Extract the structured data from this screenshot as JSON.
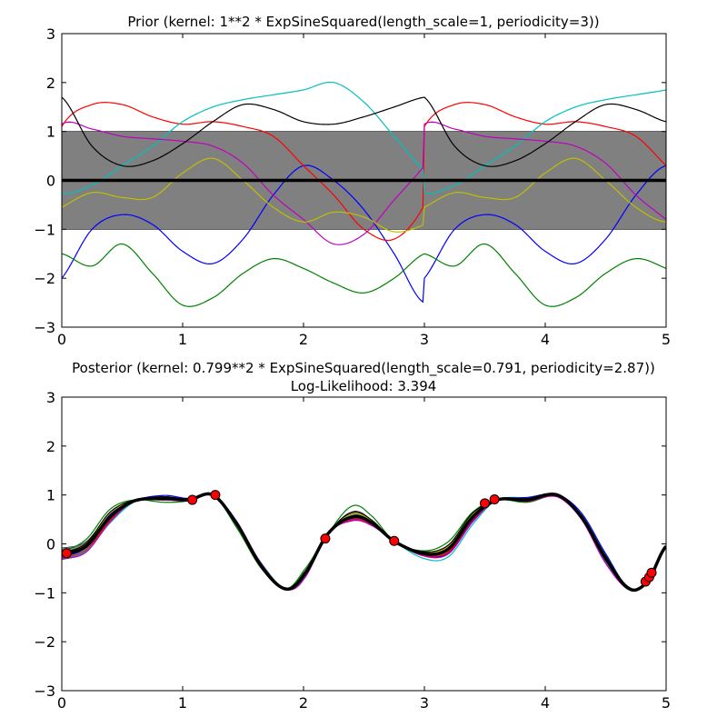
{
  "colors": {
    "background": "#ffffff",
    "band": "#808080",
    "mean": "#000000",
    "observation": "#ff0000",
    "observation_edge": "#000000"
  },
  "chart_data": [
    {
      "type": "line",
      "title": "Prior (kernel:  1**2 * ExpSineSquared(length_scale=1, periodicity=3))",
      "subtitle": "",
      "xlabel": "",
      "ylabel": "",
      "xlim": [
        0,
        5
      ],
      "ylim": [
        -3,
        3
      ],
      "xticks": [
        0,
        1,
        2,
        3,
        4,
        5
      ],
      "yticks": [
        -3,
        -2,
        -1,
        0,
        1,
        2,
        3
      ],
      "grid": false,
      "legend": "none",
      "periodicity": 3,
      "mean": {
        "x": [
          0,
          5
        ],
        "y": [
          0,
          0
        ]
      },
      "band": {
        "lower": -1,
        "upper": 1
      },
      "sample_x": [
        0,
        0.25,
        0.5,
        0.75,
        1.0,
        1.25,
        1.5,
        1.75,
        2.0,
        2.25,
        2.5,
        2.75,
        3.0
      ],
      "series": [
        {
          "color": "#0000ff",
          "values": [
            -2.0,
            -1.0,
            -0.7,
            -0.9,
            -1.45,
            -1.7,
            -1.2,
            -0.3,
            0.3,
            0.0,
            -0.6,
            -1.5,
            -2.5
          ]
        },
        {
          "color": "#008000",
          "values": [
            -1.5,
            -1.75,
            -1.3,
            -1.9,
            -2.55,
            -2.4,
            -1.9,
            -1.6,
            -1.8,
            -2.1,
            -2.3,
            -2.0,
            -1.5
          ]
        },
        {
          "color": "#ff0000",
          "values": [
            1.1,
            1.55,
            1.55,
            1.3,
            1.15,
            1.2,
            1.1,
            0.9,
            0.3,
            -0.3,
            -1.0,
            -1.2,
            -0.5
          ]
        },
        {
          "color": "#00bfbf",
          "values": [
            -0.25,
            -0.1,
            0.3,
            0.7,
            1.2,
            1.5,
            1.65,
            1.75,
            1.85,
            2.0,
            1.6,
            0.9,
            0.2
          ]
        },
        {
          "color": "#bf00bf",
          "values": [
            1.15,
            1.05,
            0.9,
            0.85,
            0.8,
            0.7,
            0.35,
            -0.3,
            -0.8,
            -1.3,
            -1.1,
            -0.4,
            0.3
          ]
        },
        {
          "color": "#bfbf00",
          "values": [
            -0.55,
            -0.25,
            -0.35,
            -0.35,
            0.15,
            0.45,
            0.0,
            -0.55,
            -0.85,
            -0.65,
            -0.75,
            -1.05,
            -0.9
          ]
        },
        {
          "color": "#000000",
          "values": [
            1.7,
            0.7,
            0.3,
            0.4,
            0.75,
            1.2,
            1.55,
            1.45,
            1.2,
            1.15,
            1.3,
            1.5,
            1.7
          ]
        }
      ]
    },
    {
      "type": "line",
      "title": "Posterior (kernel: 0.799**2 * ExpSineSquared(length_scale=0.791, periodicity=2.87))",
      "subtitle": "Log-Likelihood: 3.394",
      "xlabel": "",
      "ylabel": "",
      "xlim": [
        0,
        5
      ],
      "ylim": [
        -3,
        3
      ],
      "xticks": [
        0,
        1,
        2,
        3,
        4,
        5
      ],
      "yticks": [
        -3,
        -2,
        -1,
        0,
        1,
        2,
        3
      ],
      "grid": false,
      "legend": "none",
      "periodicity": 2.87,
      "mean": {
        "x": [
          0,
          0.2,
          0.4,
          0.6,
          0.85,
          1.05,
          1.25,
          1.45,
          1.65,
          1.85,
          2.0,
          2.2,
          2.4,
          2.55,
          2.75,
          3.0,
          3.2,
          3.4,
          3.6,
          3.85,
          4.1,
          4.3,
          4.5,
          4.7,
          4.85,
          5.0
        ],
        "y": [
          -0.2,
          -0.05,
          0.55,
          0.88,
          0.93,
          0.9,
          1.0,
          0.4,
          -0.45,
          -0.92,
          -0.65,
          0.2,
          0.55,
          0.45,
          0.05,
          -0.2,
          -0.1,
          0.55,
          0.9,
          0.9,
          1.0,
          0.55,
          -0.3,
          -0.92,
          -0.75,
          -0.05
        ]
      },
      "band_halfwidth": [
        0.12,
        0.1,
        0.08,
        0.02,
        0.04,
        0.02,
        0.01,
        0.04,
        0.05,
        0.01,
        0.06,
        0.01,
        0.08,
        0.05,
        0.01,
        0.04,
        0.08,
        0.08,
        0.01,
        0.04,
        0.02,
        0.03,
        0.05,
        0.02,
        0.01,
        0.02
      ],
      "sample_offsets": [
        {
          "color": "#0000ff",
          "values": [
            -0.05,
            -0.02,
            0.05,
            0.01,
            0.06,
            0.03,
            0.0,
            0.05,
            0.0,
            0.0,
            0.03,
            0.0,
            -0.03,
            -0.02,
            0.0,
            -0.02,
            -0.1,
            -0.08,
            0.0,
            0.05,
            0.01,
            0.08,
            0.1,
            0.0,
            0.0,
            0.0
          ]
        },
        {
          "color": "#008000",
          "values": [
            0.06,
            0.14,
            0.16,
            0.02,
            -0.08,
            -0.02,
            0.0,
            -0.08,
            -0.05,
            0.0,
            0.1,
            0.0,
            0.22,
            0.15,
            0.0,
            0.06,
            0.15,
            0.1,
            0.0,
            -0.05,
            -0.02,
            0.04,
            0.06,
            0.02,
            0.0,
            0.0
          ]
        },
        {
          "color": "#ff0000",
          "values": [
            -0.08,
            -0.08,
            -0.06,
            -0.01,
            0.0,
            -0.01,
            0.0,
            0.02,
            0.03,
            0.0,
            -0.04,
            0.0,
            -0.06,
            -0.03,
            0.0,
            -0.03,
            -0.06,
            -0.05,
            0.0,
            -0.03,
            -0.02,
            -0.03,
            -0.05,
            -0.01,
            0.0,
            0.0
          ]
        },
        {
          "color": "#00bfbf",
          "values": [
            -0.1,
            -0.1,
            -0.12,
            -0.02,
            0.03,
            0.0,
            0.0,
            -0.03,
            0.06,
            0.0,
            -0.06,
            0.0,
            0.02,
            0.02,
            0.0,
            -0.1,
            -0.16,
            -0.15,
            0.0,
            0.03,
            0.01,
            -0.04,
            -0.08,
            -0.03,
            0.0,
            0.0
          ]
        },
        {
          "color": "#bf00bf",
          "values": [
            -0.1,
            -0.12,
            -0.1,
            0.0,
            -0.03,
            -0.02,
            0.0,
            0.04,
            0.05,
            0.0,
            -0.08,
            0.0,
            -0.08,
            -0.06,
            0.0,
            -0.05,
            -0.1,
            -0.1,
            0.0,
            -0.03,
            -0.04,
            -0.05,
            -0.1,
            -0.02,
            0.0,
            0.0
          ]
        },
        {
          "color": "#bfbf00",
          "values": [
            0.02,
            0.05,
            0.08,
            0.01,
            0.02,
            0.01,
            0.0,
            -0.02,
            -0.02,
            0.0,
            0.04,
            0.0,
            0.05,
            0.04,
            0.0,
            0.03,
            0.05,
            0.05,
            0.0,
            0.01,
            0.01,
            0.02,
            0.03,
            0.01,
            0.0,
            0.0
          ]
        },
        {
          "color": "#000000",
          "values": [
            0.03,
            0.06,
            0.1,
            0.02,
            0.03,
            0.02,
            0.0,
            0.03,
            -0.03,
            0.0,
            0.05,
            0.0,
            0.1,
            0.06,
            0.0,
            0.04,
            0.08,
            0.08,
            0.0,
            0.03,
            0.02,
            0.03,
            0.05,
            0.01,
            0.0,
            0.0
          ]
        }
      ],
      "observations": {
        "x": [
          0.04,
          1.08,
          1.27,
          2.18,
          2.75,
          3.5,
          3.58,
          4.83,
          4.86,
          4.88
        ],
        "y": [
          -0.19,
          0.9,
          1.0,
          0.11,
          0.06,
          0.83,
          0.91,
          -0.77,
          -0.68,
          -0.59
        ]
      }
    }
  ]
}
